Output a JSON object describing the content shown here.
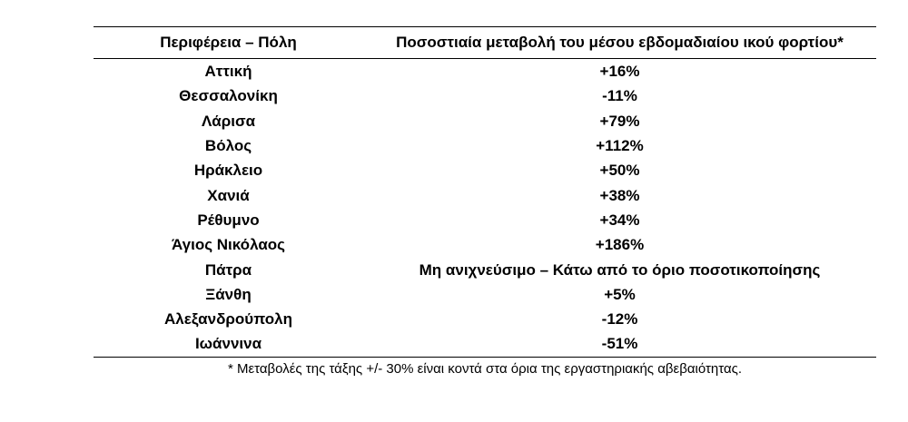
{
  "table": {
    "header": [
      "Περιφέρεια – Πόλη",
      "Ποσοστιαία μεταβολή του μέσου εβδομαδιαίου ικού φορτίου*"
    ],
    "rows": [
      [
        "Αττική",
        "+16%"
      ],
      [
        "Θεσσαλονίκη",
        "-11%"
      ],
      [
        "Λάρισα",
        "+79%"
      ],
      [
        "Βόλος",
        "+112%"
      ],
      [
        "Ηράκλειο",
        "+50%"
      ],
      [
        "Χανιά",
        "+38%"
      ],
      [
        "Ρέθυμνο",
        "+34%"
      ],
      [
        "Άγιος Νικόλαος",
        "+186%"
      ],
      [
        "Πάτρα",
        "Μη ανιχνεύσιμο – Κάτω από το όριο ποσοτικοποίησης"
      ],
      [
        "Ξάνθη",
        "+5%"
      ],
      [
        "Αλεξανδρούπολη",
        "-12%"
      ],
      [
        "Ιωάννινα",
        "-51%"
      ]
    ],
    "footnote": "* Μεταβολές της τάξης +/- 30% είναι κοντά στα όρια της εργαστηριακής αβεβαιότητας."
  }
}
